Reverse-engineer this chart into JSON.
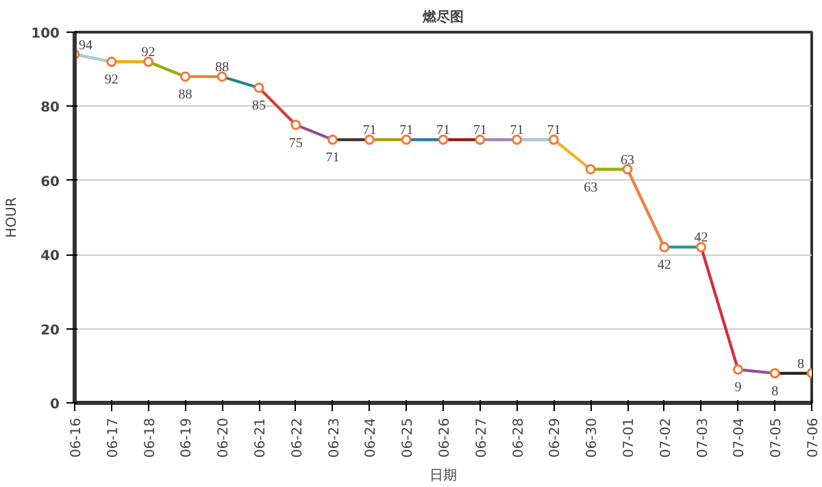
{
  "chart_data": {
    "type": "line",
    "title": "燃尽图",
    "xlabel": "日期",
    "ylabel": "HOUR",
    "categories": [
      "06-16",
      "06-17",
      "06-18",
      "06-19",
      "06-20",
      "06-21",
      "06-22",
      "06-23",
      "06-24",
      "06-25",
      "06-26",
      "06-27",
      "06-28",
      "06-29",
      "06-30",
      "07-01",
      "07-02",
      "07-03",
      "07-04",
      "07-05",
      "07-06"
    ],
    "series": [
      {
        "color": "#f07838",
        "values": [
          94,
          92,
          92,
          88,
          88,
          85,
          75,
          71,
          71,
          71,
          71,
          71,
          71,
          71,
          63,
          63,
          42,
          42,
          9,
          8,
          8
        ],
        "colors": [
          "#a6cee3",
          "#f0b000",
          "#8db600",
          "#f08030",
          "#1a8a8a",
          "#d04040",
          "#8e4e9c",
          "#333333",
          "#a0a010",
          "#1f78b4",
          "#8b1a1a",
          "#9a8ab8",
          "#a6cee3",
          "#e8b830",
          "#8db600",
          "#f08040",
          "#1a9a9a",
          "#d03040",
          "#9050a0",
          "#222222",
          "#222222"
        ]
      }
    ],
    "ylim": [
      0,
      100
    ],
    "yticks": [
      0,
      20,
      40,
      60,
      80,
      100
    ],
    "grid": "y",
    "marker": "circle",
    "line_style": "solid",
    "data_labels": true,
    "legend": false
  }
}
